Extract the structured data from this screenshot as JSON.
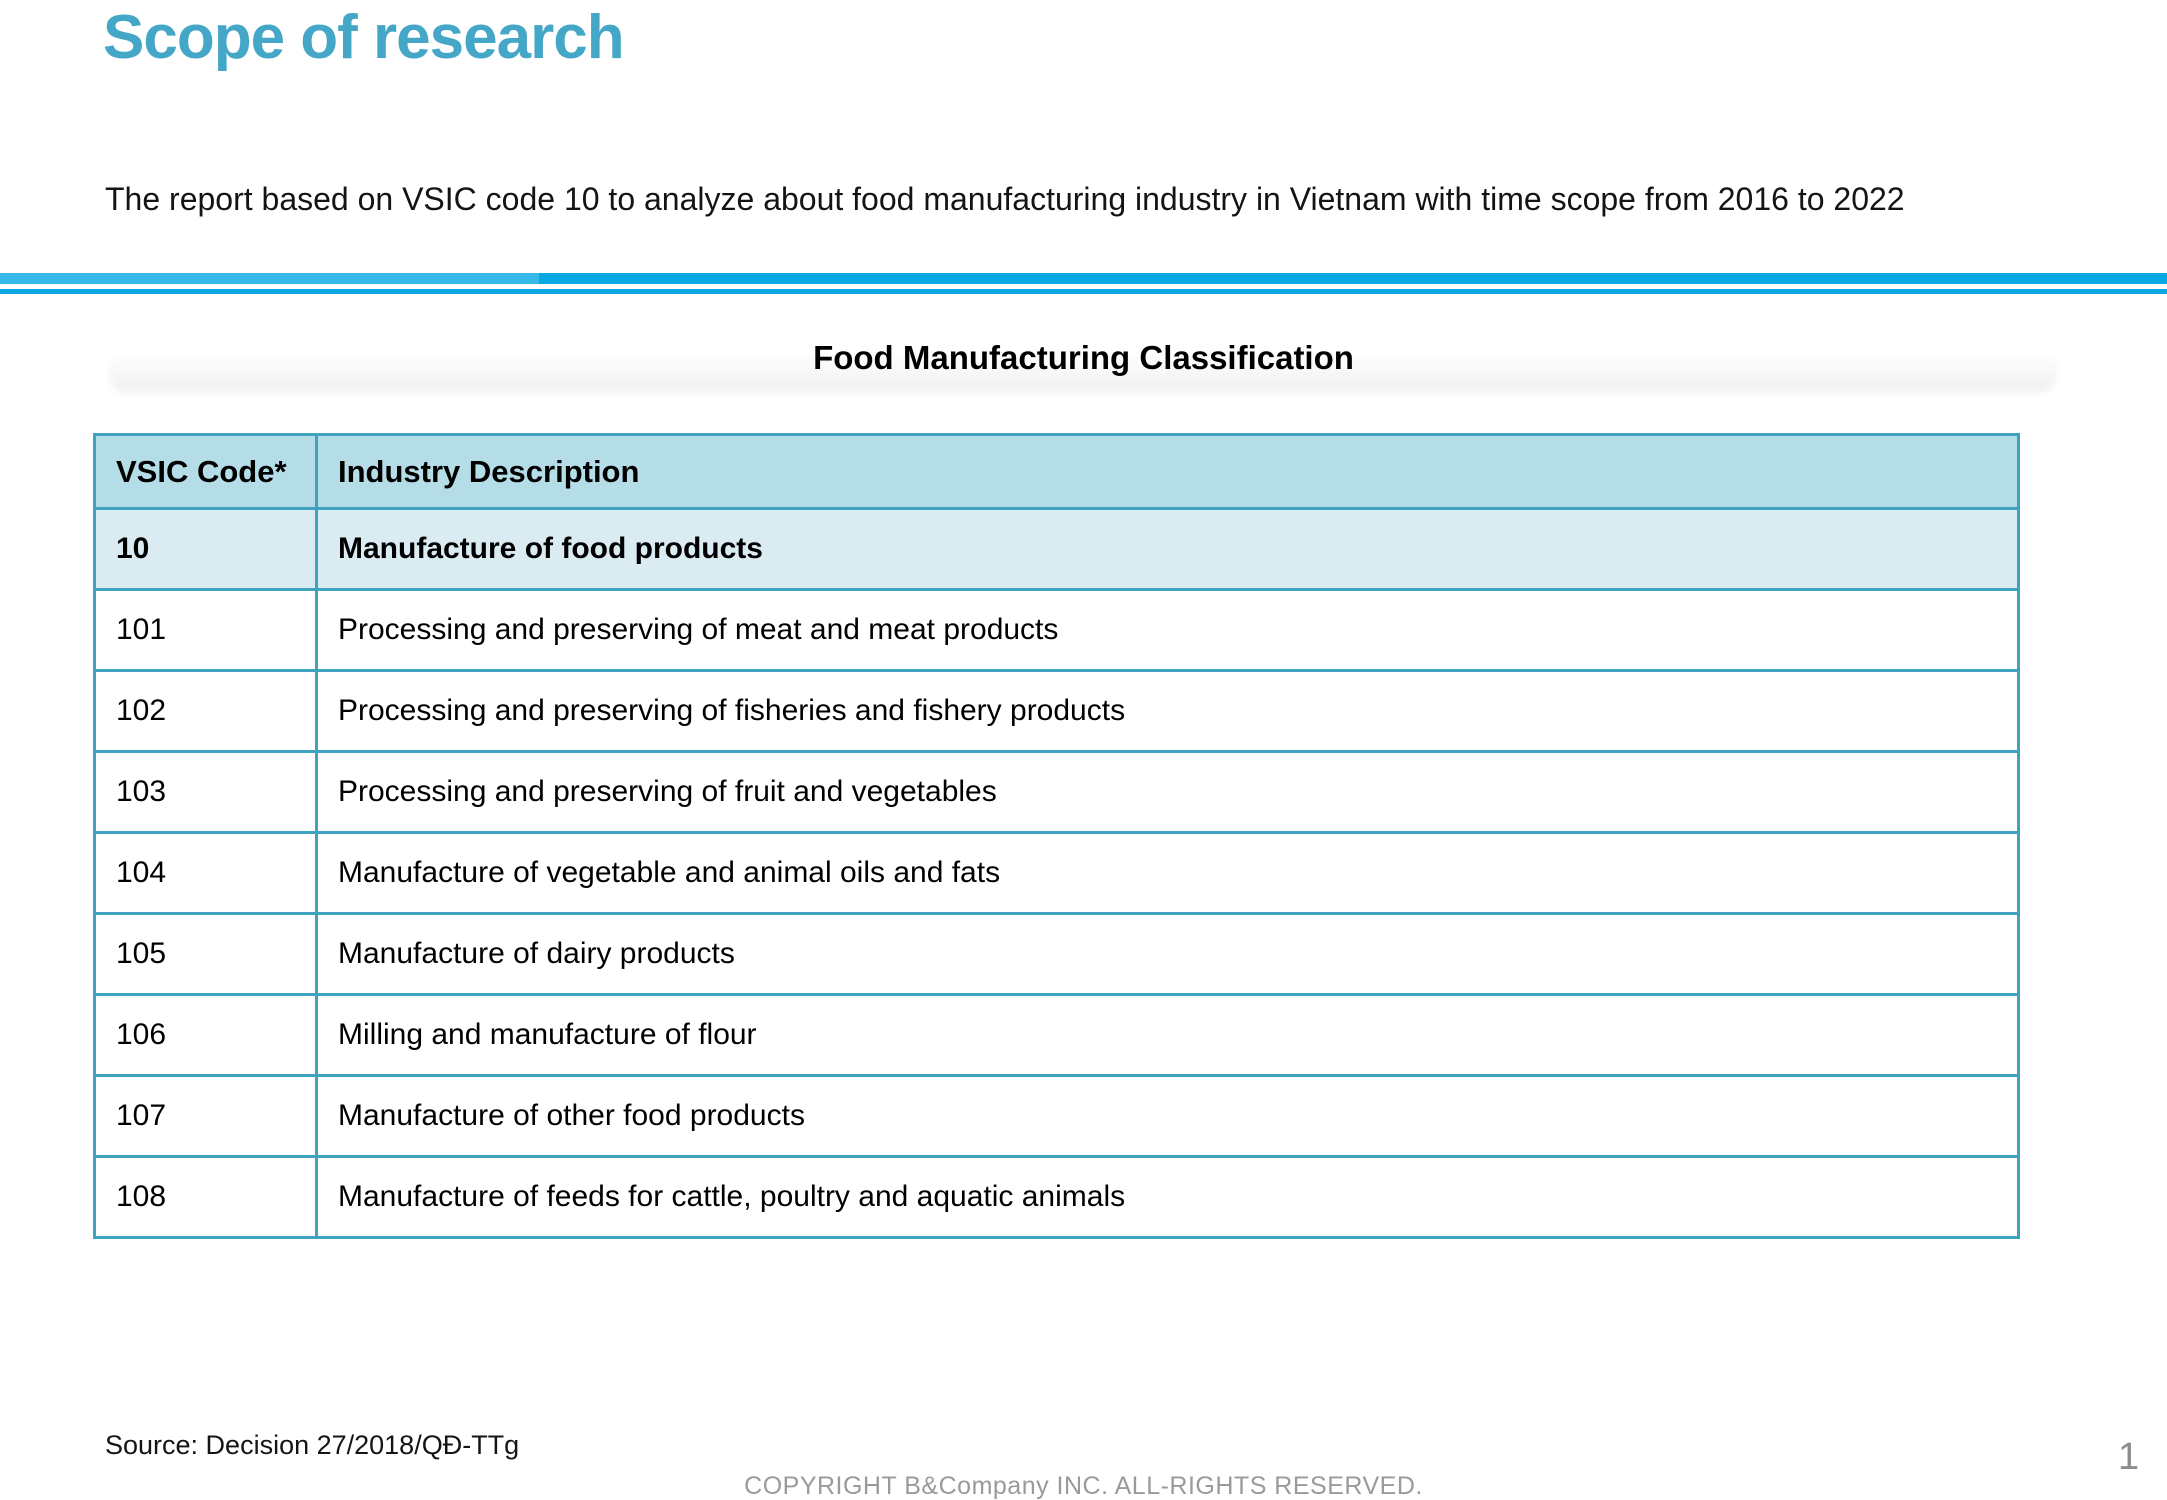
{
  "slide": {
    "title": "Scope of research",
    "intro": "The report based on VSIC code 10 to analyze about food manufacturing industry in Vietnam with time scope from 2016 to 2022",
    "table_title": "Food Manufacturing Classification",
    "source": "Source: Decision 27/2018/QĐ-TTg",
    "footer": "COPYRIGHT B&Company INC. ALL-RIGHTS RESERVED.",
    "page_number": "1"
  },
  "table": {
    "headers": [
      "VSIC Code*",
      "Industry Description"
    ],
    "rows": [
      {
        "code": "10",
        "description": "Manufacture of food products",
        "emphasis": true
      },
      {
        "code": "101",
        "description": "Processing and preserving of meat and meat products",
        "emphasis": false
      },
      {
        "code": "102",
        "description": "Processing and preserving of fisheries and fishery products",
        "emphasis": false
      },
      {
        "code": "103",
        "description": "Processing and preserving of fruit and vegetables",
        "emphasis": false
      },
      {
        "code": "104",
        "description": "Manufacture of vegetable and animal oils and fats",
        "emphasis": false
      },
      {
        "code": "105",
        "description": "Manufacture of dairy products",
        "emphasis": false
      },
      {
        "code": "106",
        "description": "Milling and manufacture of flour",
        "emphasis": false
      },
      {
        "code": "107",
        "description": "Manufacture of other food products",
        "emphasis": false
      },
      {
        "code": "108",
        "description": "Manufacture of feeds for cattle, poultry and aquatic animals",
        "emphasis": false
      }
    ]
  },
  "colors": {
    "title_teal": "#45a7c7",
    "divider_blue": "#0aa9e3",
    "table_border": "#3fa3bf",
    "header_row_bg": "#b5dde7",
    "emphasis_row_bg": "#daebf2",
    "footer_gray": "#9a9a9a"
  }
}
